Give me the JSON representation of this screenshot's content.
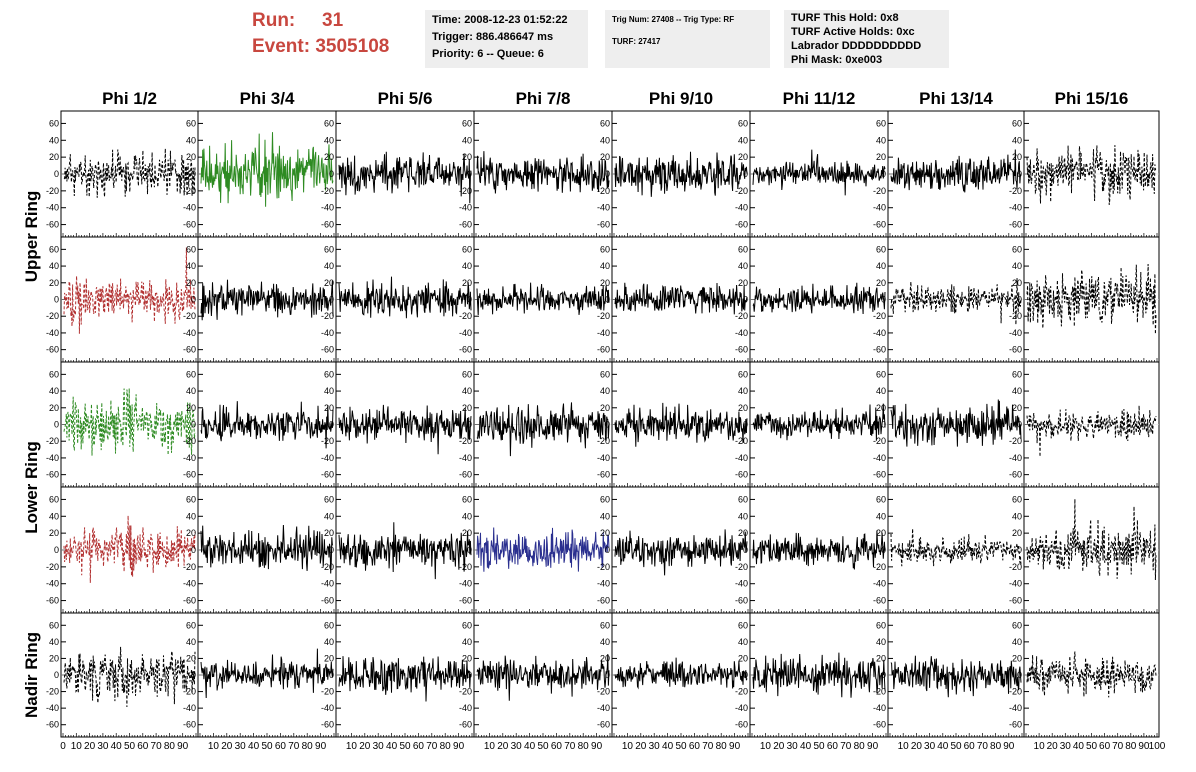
{
  "header": {
    "run_label": "Run:",
    "run_value": "31",
    "event_label": "Event:",
    "event_value": "3505108",
    "time_box": [
      "Time: 2008-12-23 01:52:22",
      "Trigger: 886.486647 ms",
      "Priority: 6 -- Queue: 6"
    ],
    "trig_box": [
      "Trig Num: 27408 -- Trig Type: RF",
      "",
      "TURF: 27417"
    ],
    "turf_box": [
      "TURF This Hold: 0x8",
      "TURF Active Holds: 0xc",
      "Labrador DDDDDDDDDD",
      "Phi Mask: 0xe003"
    ]
  },
  "chart_data": {
    "type": "line",
    "columns": [
      "Phi 1/2",
      "Phi 3/4",
      "Phi 5/6",
      "Phi 7/8",
      "Phi 9/10",
      "Phi 11/12",
      "Phi 13/14",
      "Phi 15/16"
    ],
    "rows": [
      "Upper Ring",
      "Lower Ring",
      "Nadir Ring"
    ],
    "ylim": [
      -70,
      70
    ],
    "y_ticks": [
      -60,
      -40,
      -20,
      0,
      20,
      40,
      60
    ],
    "xlim": [
      0,
      100
    ],
    "x_ticks": [
      0,
      10,
      20,
      30,
      40,
      50,
      60,
      70,
      80,
      90,
      100
    ],
    "panels": [
      {
        "row": 0,
        "col": 0,
        "color": "#000000",
        "style": "dashed",
        "amp": 18,
        "seed": 11
      },
      {
        "row": 0,
        "col": 1,
        "color": "#2e8b22",
        "style": "solid",
        "amp": 24,
        "seed": 12
      },
      {
        "row": 0,
        "col": 2,
        "color": "#000000",
        "style": "solid",
        "amp": 16,
        "seed": 13
      },
      {
        "row": 0,
        "col": 3,
        "color": "#000000",
        "style": "solid",
        "amp": 14,
        "seed": 14
      },
      {
        "row": 0,
        "col": 4,
        "color": "#000000",
        "style": "solid",
        "amp": 15,
        "seed": 15
      },
      {
        "row": 0,
        "col": 5,
        "color": "#000000",
        "style": "solid",
        "amp": 10,
        "seed": 16
      },
      {
        "row": 0,
        "col": 6,
        "color": "#000000",
        "style": "solid",
        "amp": 13,
        "seed": 17
      },
      {
        "row": 0,
        "col": 7,
        "color": "#000000",
        "style": "dashed",
        "amp": 20,
        "seed": 18
      },
      {
        "row": 1,
        "col": 0,
        "color": "#b23030",
        "style": "dashed",
        "amp": 18,
        "seed": 21
      },
      {
        "row": 1,
        "col": 1,
        "color": "#000000",
        "style": "solid",
        "amp": 14,
        "seed": 22
      },
      {
        "row": 1,
        "col": 2,
        "color": "#000000",
        "style": "solid",
        "amp": 15,
        "seed": 23
      },
      {
        "row": 1,
        "col": 3,
        "color": "#000000",
        "style": "solid",
        "amp": 12,
        "seed": 24
      },
      {
        "row": 1,
        "col": 4,
        "color": "#000000",
        "style": "solid",
        "amp": 12,
        "seed": 25
      },
      {
        "row": 1,
        "col": 5,
        "color": "#000000",
        "style": "solid",
        "amp": 11,
        "seed": 26
      },
      {
        "row": 1,
        "col": 6,
        "color": "#000000",
        "style": "dashed",
        "amp": 12,
        "seed": 27
      },
      {
        "row": 1,
        "col": 7,
        "color": "#000000",
        "style": "dashed",
        "amp": 24,
        "seed": 28
      },
      {
        "row": 2,
        "col": 0,
        "color": "#2e8b22",
        "style": "dashed",
        "amp": 24,
        "seed": 31
      },
      {
        "row": 2,
        "col": 1,
        "color": "#000000",
        "style": "solid",
        "amp": 12,
        "seed": 32
      },
      {
        "row": 2,
        "col": 2,
        "color": "#000000",
        "style": "solid",
        "amp": 14,
        "seed": 33
      },
      {
        "row": 2,
        "col": 3,
        "color": "#000000",
        "style": "solid",
        "amp": 16,
        "seed": 34
      },
      {
        "row": 2,
        "col": 4,
        "color": "#000000",
        "style": "solid",
        "amp": 15,
        "seed": 35
      },
      {
        "row": 2,
        "col": 5,
        "color": "#000000",
        "style": "solid",
        "amp": 12,
        "seed": 36
      },
      {
        "row": 2,
        "col": 6,
        "color": "#000000",
        "style": "solid",
        "amp": 16,
        "seed": 37
      },
      {
        "row": 2,
        "col": 7,
        "color": "#000000",
        "style": "dashed",
        "amp": 12,
        "seed": 38
      },
      {
        "row": 3,
        "col": 0,
        "color": "#b23030",
        "style": "dashed",
        "amp": 18,
        "seed": 41
      },
      {
        "row": 3,
        "col": 1,
        "color": "#000000",
        "style": "solid",
        "amp": 16,
        "seed": 42
      },
      {
        "row": 3,
        "col": 2,
        "color": "#000000",
        "style": "solid",
        "amp": 15,
        "seed": 43
      },
      {
        "row": 3,
        "col": 3,
        "color": "#2a2f8f",
        "style": "solid",
        "amp": 16,
        "seed": 44
      },
      {
        "row": 3,
        "col": 4,
        "color": "#000000",
        "style": "solid",
        "amp": 14,
        "seed": 45
      },
      {
        "row": 3,
        "col": 5,
        "color": "#000000",
        "style": "solid",
        "amp": 13,
        "seed": 46
      },
      {
        "row": 3,
        "col": 6,
        "color": "#000000",
        "style": "dashed",
        "amp": 11,
        "seed": 47
      },
      {
        "row": 3,
        "col": 7,
        "color": "#000000",
        "style": "dashed",
        "amp": 22,
        "seed": 48
      },
      {
        "row": 4,
        "col": 0,
        "color": "#000000",
        "style": "dashed",
        "amp": 20,
        "seed": 51
      },
      {
        "row": 4,
        "col": 1,
        "color": "#000000",
        "style": "solid",
        "amp": 12,
        "seed": 52
      },
      {
        "row": 4,
        "col": 2,
        "color": "#000000",
        "style": "solid",
        "amp": 16,
        "seed": 53
      },
      {
        "row": 4,
        "col": 3,
        "color": "#000000",
        "style": "solid",
        "amp": 14,
        "seed": 54
      },
      {
        "row": 4,
        "col": 4,
        "color": "#000000",
        "style": "solid",
        "amp": 11,
        "seed": 55
      },
      {
        "row": 4,
        "col": 5,
        "color": "#000000",
        "style": "solid",
        "amp": 16,
        "seed": 56
      },
      {
        "row": 4,
        "col": 6,
        "color": "#000000",
        "style": "solid",
        "amp": 15,
        "seed": 57
      },
      {
        "row": 4,
        "col": 7,
        "color": "#000000",
        "style": "dashed",
        "amp": 16,
        "seed": 58
      }
    ]
  }
}
